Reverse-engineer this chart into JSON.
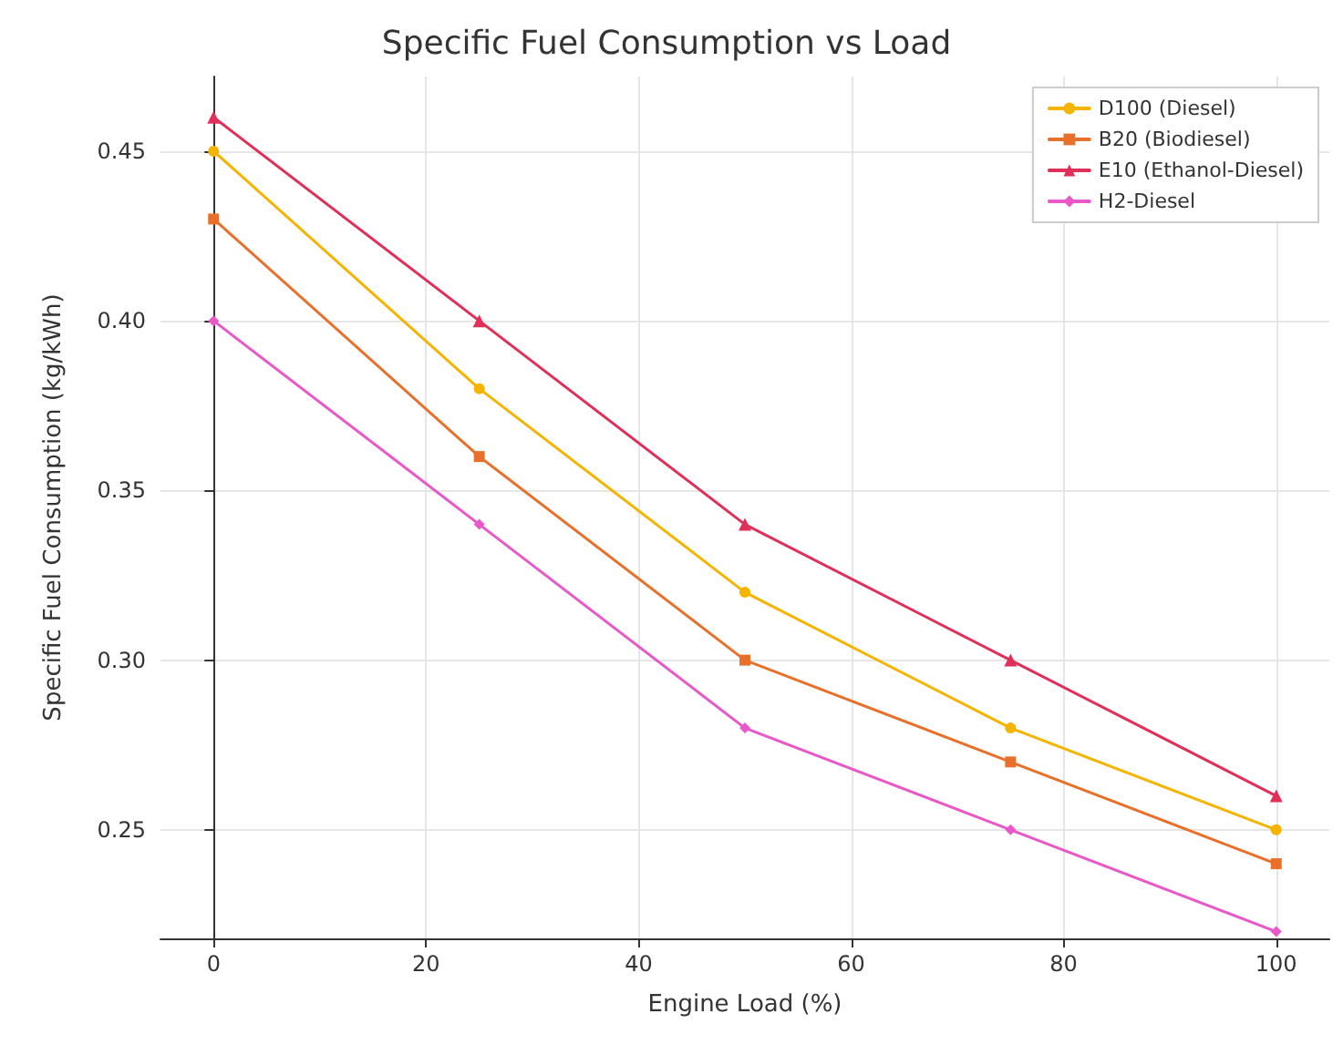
{
  "chart_data": {
    "type": "line",
    "title": "Specific Fuel Consumption vs Load",
    "xlabel": "Engine Load (%)",
    "ylabel": "Specific Fuel Consumption (kg/kWh)",
    "x": [
      0,
      25,
      50,
      75,
      100
    ],
    "series": [
      {
        "name": "D100 (Diesel)",
        "color": "#f5b400",
        "marker": "circle",
        "values": [
          0.45,
          0.38,
          0.32,
          0.28,
          0.25
        ]
      },
      {
        "name": "B20 (Biodiesel)",
        "color": "#e8702a",
        "marker": "square",
        "values": [
          0.43,
          0.36,
          0.3,
          0.27,
          0.24
        ]
      },
      {
        "name": "E10 (Ethanol-Diesel)",
        "color": "#e0305a",
        "marker": "triangle",
        "values": [
          0.46,
          0.4,
          0.34,
          0.3,
          0.26
        ]
      },
      {
        "name": "H2-Diesel",
        "color": "#e858c8",
        "marker": "diamond",
        "values": [
          0.4,
          0.34,
          0.28,
          0.25,
          0.22
        ]
      }
    ],
    "xlim": [
      -5,
      105
    ],
    "xticks": [
      0,
      20,
      40,
      60,
      80,
      100
    ],
    "ylim": [
      0.218,
      0.472
    ],
    "yticks": [
      {
        "value": 0.25,
        "label": "0.25"
      },
      {
        "value": 0.3,
        "label": "0.30"
      },
      {
        "value": 0.35,
        "label": "0.35"
      },
      {
        "value": 0.4,
        "label": "0.40"
      },
      {
        "value": 0.45,
        "label": "0.45"
      }
    ],
    "grid": true,
    "legend": "top right",
    "line_style": "solid"
  }
}
